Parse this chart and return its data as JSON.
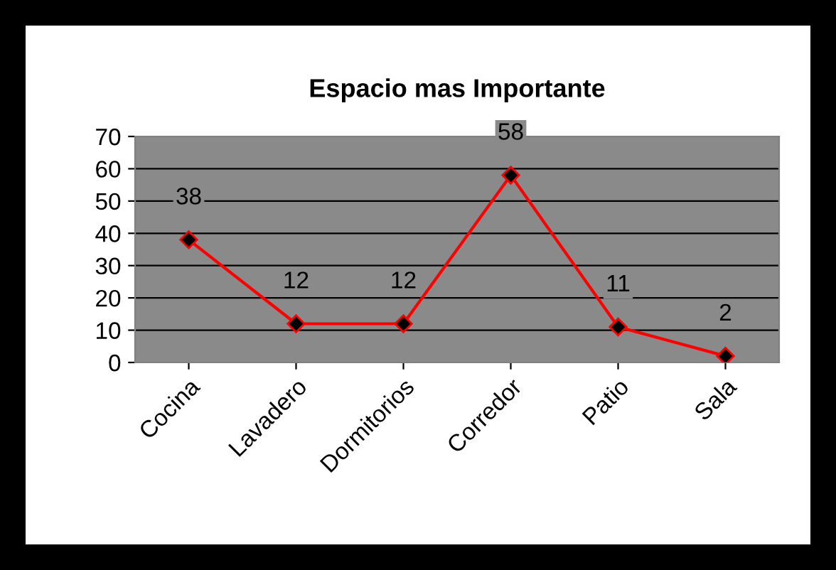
{
  "chart_data": {
    "type": "line",
    "title": "Espacio mas Importante",
    "categories": [
      "Cocina",
      "Lavadero",
      "Dormitorios",
      "Corredor",
      "Patio",
      "Sala"
    ],
    "series": [
      {
        "color": "#ff0000",
        "values": [
          38,
          12,
          12,
          58,
          11,
          2
        ]
      }
    ],
    "ylim": [
      0,
      70
    ],
    "yticks": [
      0,
      10,
      20,
      30,
      40,
      50,
      60,
      70
    ],
    "grid": "y",
    "marker": "diamond",
    "line_style": "solid",
    "data_labels": true
  }
}
